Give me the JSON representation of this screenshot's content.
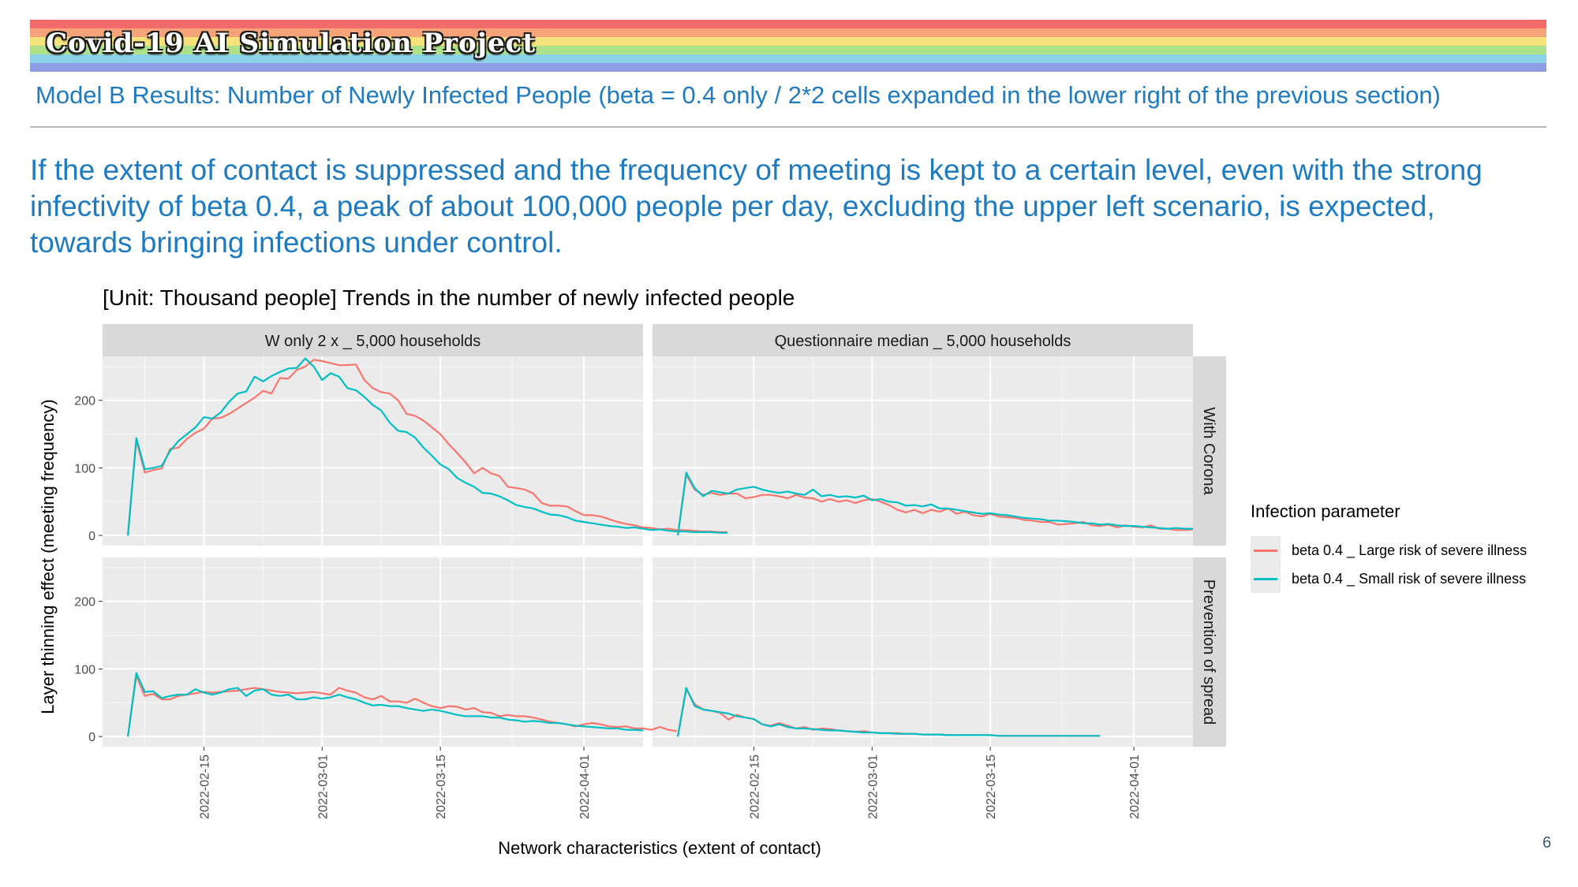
{
  "header": {
    "banner_title": "Covid-19 AI Simulation Project",
    "banner_colors": [
      "#f26b6b",
      "#f7a37a",
      "#f6e27a",
      "#aee28a",
      "#8dd3e8",
      "#8c9de6"
    ],
    "subtitle": "Model B Results: Number of Newly Infected People (beta = 0.4 only / 2*2 cells expanded in the lower right of the previous section)",
    "lead": "If the extent of contact is suppressed and the frequency of meeting is kept to a certain level, even with the strong infectivity of beta 0.4, a peak of about 100,000 people per day, excluding the upper left scenario, is expected, towards bringing infections under control."
  },
  "page_number": "6",
  "chart_data": {
    "type": "line",
    "title": "[Unit: Thousand people] Trends in the number of newly infected people",
    "xlabel": "Network characteristics (extent of contact)",
    "ylabel": "Layer thinning effect (meeting frequency)",
    "col_facets": [
      "W only 2 x _ 5,000 households",
      "Questionnaire median _ 5,000 households"
    ],
    "row_facets": [
      "With Corona",
      "Prevention of spread"
    ],
    "x_start": "2022-02-06",
    "x_ticks": [
      "2022-02-15",
      "2022-03-01",
      "2022-03-15",
      "2022-04-01"
    ],
    "xlim": [
      "2022-02-03",
      "2022-04-08"
    ],
    "ylim": [
      -15,
      265
    ],
    "y_ticks": [
      0,
      100,
      200
    ],
    "grid": true,
    "legend_title": "Infection parameter",
    "legend_position": "right",
    "series_names": [
      "beta 0.4 _ Large risk of severe illness",
      "beta 0.4 _ Small risk of severe illness"
    ],
    "series_colors": [
      "#f8766d",
      "#00bfc4"
    ],
    "panels": [
      {
        "col": 0,
        "row": 0,
        "series": [
          {
            "name": "beta 0.4 _ Large risk of severe illness",
            "values": [
              0,
              141,
              93,
              97,
              99,
              128,
              130,
              143,
              152,
              158,
              173,
              174,
              180,
              188,
              196,
              204,
              214,
              210,
              233,
              232,
              245,
              250,
              260,
              258,
              255,
              252,
              252,
              253,
              230,
              218,
              212,
              210,
              200,
              180,
              177,
              170,
              160,
              150,
              135,
              122,
              108,
              92,
              100,
              92,
              88,
              72,
              70,
              68,
              62,
              48,
              44,
              44,
              43,
              36,
              30,
              30,
              28,
              24,
              20,
              17,
              15,
              12,
              11,
              9,
              10,
              8,
              8,
              7,
              6,
              6,
              5,
              5
            ]
          },
          {
            "name": "beta 0.4 _ Small risk of severe illness",
            "values": [
              0,
              144,
              98,
              100,
              103,
              125,
              140,
              150,
              160,
              175,
              173,
              182,
              198,
              210,
              213,
              235,
              228,
              236,
              242,
              247,
              248,
              262,
              250,
              230,
              240,
              235,
              218,
              215,
              205,
              193,
              185,
              167,
              155,
              153,
              145,
              130,
              118,
              105,
              98,
              85,
              78,
              72,
              63,
              62,
              58,
              52,
              45,
              42,
              40,
              35,
              31,
              30,
              27,
              22,
              20,
              18,
              16,
              14,
              13,
              11,
              12,
              10,
              8,
              9,
              7,
              6,
              6,
              5,
              5,
              5,
              4,
              4
            ]
          }
        ]
      },
      {
        "col": 1,
        "row": 0,
        "series": [
          {
            "name": "beta 0.4 _ Large risk of severe illness",
            "values": [
              0,
              90,
              68,
              60,
              63,
              60,
              62,
              62,
              55,
              57,
              60,
              60,
              58,
              55,
              60,
              56,
              55,
              50,
              54,
              50,
              52,
              48,
              52,
              54,
              50,
              45,
              38,
              34,
              38,
              33,
              38,
              35,
              40,
              32,
              35,
              30,
              28,
              32,
              28,
              27,
              26,
              23,
              22,
              20,
              20,
              16,
              17,
              18,
              20,
              15,
              14,
              16,
              12,
              15,
              13,
              12,
              15,
              10,
              10,
              8,
              8,
              9
            ]
          },
          {
            "name": "beta 0.4 _ Small risk of severe illness",
            "values": [
              0,
              93,
              70,
              58,
              66,
              64,
              62,
              68,
              70,
              72,
              68,
              65,
              63,
              65,
              62,
              60,
              68,
              58,
              60,
              57,
              58,
              56,
              59,
              52,
              54,
              50,
              49,
              44,
              45,
              43,
              46,
              40,
              40,
              38,
              36,
              34,
              32,
              33,
              31,
              30,
              28,
              26,
              25,
              24,
              22,
              22,
              21,
              20,
              18,
              18,
              16,
              17,
              15,
              14,
              14,
              13,
              12,
              11,
              10,
              11,
              10,
              10
            ]
          }
        ]
      },
      {
        "col": 0,
        "row": 1,
        "series": [
          {
            "name": "beta 0.4 _ Large risk of severe illness",
            "values": [
              0,
              90,
              60,
              63,
              55,
              55,
              60,
              62,
              64,
              66,
              65,
              66,
              67,
              68,
              70,
              72,
              70,
              68,
              66,
              65,
              64,
              65,
              66,
              64,
              62,
              72,
              68,
              65,
              58,
              55,
              60,
              52,
              52,
              50,
              56,
              50,
              45,
              42,
              45,
              44,
              40,
              42,
              36,
              35,
              30,
              32,
              30,
              30,
              28,
              25,
              22,
              20,
              18,
              15,
              18,
              20,
              18,
              15,
              14,
              15,
              12,
              12,
              10,
              14,
              10,
              8
            ]
          },
          {
            "name": "beta 0.4 _ Small risk of severe illness",
            "values": [
              0,
              94,
              66,
              67,
              57,
              60,
              62,
              62,
              70,
              65,
              62,
              65,
              70,
              72,
              60,
              68,
              70,
              62,
              60,
              62,
              55,
              55,
              58,
              56,
              58,
              62,
              58,
              55,
              50,
              46,
              47,
              45,
              45,
              42,
              40,
              38,
              40,
              38,
              35,
              32,
              30,
              30,
              30,
              28,
              28,
              25,
              24,
              22,
              23,
              22,
              20,
              20,
              18,
              16,
              15,
              14,
              13,
              12,
              12,
              10,
              10,
              9
            ]
          }
        ]
      },
      {
        "col": 1,
        "row": 1,
        "series": [
          {
            "name": "beta 0.4 _ Large risk of severe illness",
            "values": [
              0,
              70,
              48,
              40,
              38,
              35,
              25,
              32,
              28,
              26,
              18,
              16,
              20,
              16,
              12,
              14,
              10,
              12,
              11,
              9,
              8,
              7,
              8,
              6,
              5,
              5,
              5,
              4,
              4,
              3,
              3,
              3,
              2,
              2,
              2,
              2,
              2,
              2,
              1,
              1,
              1,
              1,
              1,
              1,
              1,
              1,
              1,
              1,
              1,
              1,
              1
            ]
          },
          {
            "name": "beta 0.4 _ Small risk of severe illness",
            "values": [
              0,
              72,
              45,
              40,
              38,
              36,
              34,
              30,
              28,
              26,
              18,
              15,
              18,
              14,
              12,
              12,
              11,
              10,
              9,
              9,
              8,
              7,
              6,
              6,
              5,
              5,
              4,
              4,
              4,
              3,
              3,
              3,
              2,
              2,
              2,
              2,
              2,
              2,
              1,
              1,
              1,
              1,
              1,
              1,
              1,
              1,
              1,
              1,
              1,
              1,
              1
            ]
          }
        ]
      }
    ]
  }
}
